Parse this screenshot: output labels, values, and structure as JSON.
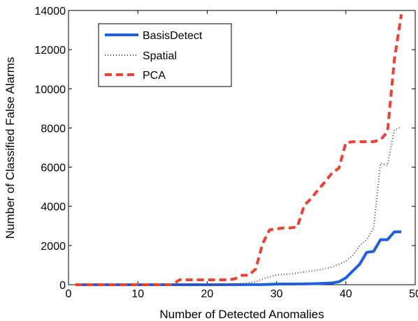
{
  "chart_data": {
    "type": "line",
    "title": "",
    "xlabel": "Number of Detected Anomalies",
    "ylabel": "Number of Classified False Alarms",
    "xlim": [
      0,
      50
    ],
    "ylim": [
      0,
      14000
    ],
    "xticks": [
      0,
      10,
      20,
      30,
      40,
      50
    ],
    "yticks": [
      0,
      2000,
      4000,
      6000,
      8000,
      10000,
      12000,
      14000
    ],
    "grid": false,
    "legend_position": "top-left",
    "series": [
      {
        "name": "BasisDetect",
        "color": "#1f5fdc",
        "style": "solid",
        "x": [
          1,
          20,
          28,
          30,
          34,
          36,
          38,
          39,
          40,
          41,
          42,
          43,
          44,
          45,
          46,
          47,
          48
        ],
        "y": [
          0,
          0,
          10,
          30,
          40,
          60,
          90,
          150,
          350,
          700,
          1050,
          1650,
          1700,
          2300,
          2300,
          2700,
          2700
        ]
      },
      {
        "name": "Spatial",
        "color": "#444444",
        "style": "dotted",
        "x": [
          1,
          20,
          25,
          27,
          28,
          30,
          32,
          34,
          36,
          38,
          40,
          41,
          42,
          43,
          44,
          45,
          46,
          47,
          48
        ],
        "y": [
          0,
          0,
          50,
          150,
          300,
          500,
          550,
          650,
          750,
          900,
          1200,
          1500,
          2000,
          2300,
          2900,
          6200,
          6100,
          7900,
          8050
        ]
      },
      {
        "name": "PCA",
        "color": "#f04030",
        "style": "dashed",
        "x": [
          1,
          15,
          16,
          23,
          24,
          25,
          26,
          27,
          28,
          29,
          30,
          31,
          32,
          33,
          34,
          35,
          36,
          37,
          38,
          39,
          40,
          41,
          42,
          43,
          44,
          45,
          46,
          47,
          48
        ],
        "y": [
          0,
          0,
          250,
          250,
          300,
          480,
          480,
          800,
          2100,
          2800,
          2850,
          2900,
          2900,
          2950,
          4050,
          4400,
          4850,
          5250,
          5700,
          5950,
          7250,
          7300,
          7300,
          7300,
          7300,
          7400,
          7800,
          11500,
          13800
        ]
      }
    ]
  }
}
